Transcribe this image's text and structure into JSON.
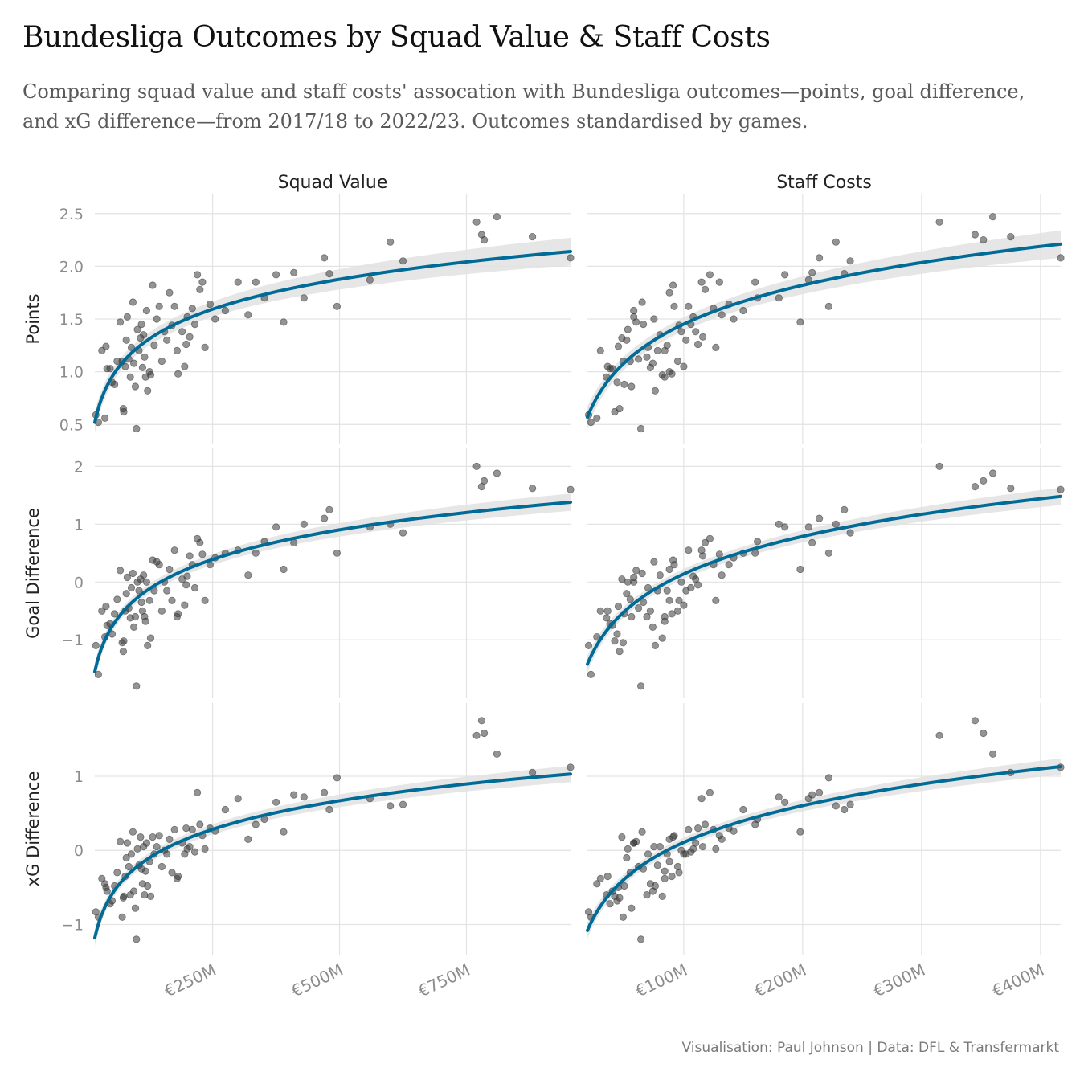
{
  "title": "Bundesliga Outcomes by Squad Value & Staff Costs",
  "subtitle": "Comparing squad value and staff costs' assocation with Bundesliga outcomes—points, goal difference, and xG difference—from 2017/18 to 2022/23. Outcomes standardised by games.",
  "caption": "Visualisation: Paul Johnson | Data: DFL & Transfermarkt",
  "colors": {
    "fit_line": "#006b96",
    "band": "#e2e2e2",
    "points": "#3a3a3a",
    "grid": "#e3e3e3"
  },
  "chart_data": {
    "type": "scatter",
    "fit": "log",
    "columns": [
      {
        "key": "squad",
        "label": "Squad Value",
        "xlim": [
          18,
          955
        ],
        "xticks": [
          {
            "value": 250,
            "label": "€250M"
          },
          {
            "value": 500,
            "label": "€500M"
          },
          {
            "value": 750,
            "label": "€750M"
          }
        ]
      },
      {
        "key": "staff",
        "label": "Staff Costs",
        "xlim": [
          19,
          417
        ],
        "xticks": [
          {
            "value": 100,
            "label": "€100M"
          },
          {
            "value": 200,
            "label": "€200M"
          },
          {
            "value": 300,
            "label": "€300M"
          },
          {
            "value": 400,
            "label": "€400M"
          }
        ]
      }
    ],
    "rows": [
      {
        "key": "points",
        "label": "Points",
        "ylim": [
          0.38,
          2.62
        ],
        "yticks": [
          {
            "value": 0.5,
            "label": "0.5"
          },
          {
            "value": 1.0,
            "label": "1.0"
          },
          {
            "value": 1.5,
            "label": "1.5"
          },
          {
            "value": 2.0,
            "label": "2.0"
          },
          {
            "value": 2.5,
            "label": "2.5"
          }
        ]
      },
      {
        "key": "gd",
        "label": "Goal Difference",
        "ylim": [
          -1.9,
          2.2
        ],
        "yticks": [
          {
            "value": -1,
            "label": "−1"
          },
          {
            "value": 0,
            "label": "0"
          },
          {
            "value": 1,
            "label": "1"
          },
          {
            "value": 2,
            "label": "2"
          }
        ]
      },
      {
        "key": "xgd",
        "label": "xG Difference",
        "ylim": [
          -1.32,
          1.9
        ],
        "yticks": [
          {
            "value": -1,
            "label": "−1"
          },
          {
            "value": 0,
            "label": "0"
          },
          {
            "value": 1,
            "label": "1"
          }
        ]
      }
    ],
    "fits": {
      "squad": {
        "points": {
          "from": 0.52,
          "to": 2.14
        },
        "gd": {
          "from": -1.55,
          "to": 1.38
        },
        "xgd": {
          "from": -1.18,
          "to": 1.03
        }
      },
      "staff": {
        "points": {
          "from": 0.57,
          "to": 2.21
        },
        "gd": {
          "from": -1.42,
          "to": 1.48
        },
        "xgd": {
          "from": -1.08,
          "to": 1.13
        }
      }
    },
    "band_width": {
      "points": [
        0.1,
        0.04,
        0.05,
        0.13
      ],
      "gd": [
        0.15,
        0.06,
        0.07,
        0.15
      ],
      "xgd": [
        0.11,
        0.05,
        0.05,
        0.11
      ]
    },
    "teams": [
      {
        "squad": 20,
        "staff": 20,
        "points": 0.59,
        "gd": -1.1,
        "xgd": -0.83
      },
      {
        "squad": 25,
        "staff": 22,
        "points": 0.52,
        "gd": -1.6,
        "xgd": -0.9
      },
      {
        "squad": 32,
        "staff": 30,
        "points": 1.2,
        "gd": -0.5,
        "xgd": -0.38
      },
      {
        "squad": 38,
        "staff": 27,
        "points": 0.56,
        "gd": -0.95,
        "xgd": -0.45
      },
      {
        "squad": 40,
        "staff": 45,
        "points": 1.24,
        "gd": -0.42,
        "xgd": -0.5
      },
      {
        "squad": 42,
        "staff": 40,
        "points": 1.03,
        "gd": -0.75,
        "xgd": -0.55
      },
      {
        "squad": 48,
        "staff": 38,
        "points": 1.03,
        "gd": -0.72,
        "xgd": -0.72
      },
      {
        "squad": 52,
        "staff": 44,
        "points": 0.9,
        "gd": -0.9,
        "xgd": -0.68
      },
      {
        "squad": 57,
        "staff": 50,
        "points": 0.88,
        "gd": -0.55,
        "xgd": -0.48
      },
      {
        "squad": 62,
        "staff": 55,
        "points": 1.1,
        "gd": -0.3,
        "xgd": -0.3
      },
      {
        "squad": 68,
        "staff": 60,
        "points": 1.47,
        "gd": 0.2,
        "xgd": 0.12
      },
      {
        "squad": 72,
        "staff": 49,
        "points": 1.1,
        "gd": -1.05,
        "xgd": -0.9
      },
      {
        "squad": 74,
        "staff": 46,
        "points": 0.65,
        "gd": -1.2,
        "xgd": -0.64
      },
      {
        "squad": 75,
        "staff": 42,
        "points": 0.62,
        "gd": -1.02,
        "xgd": -0.62
      },
      {
        "squad": 78,
        "staff": 36,
        "points": 1.05,
        "gd": -0.5,
        "xgd": -0.35
      },
      {
        "squad": 80,
        "staff": 52,
        "points": 1.3,
        "gd": -0.2,
        "xgd": -0.1
      },
      {
        "squad": 82,
        "staff": 58,
        "points": 1.52,
        "gd": 0.08,
        "xgd": 0.1
      },
      {
        "squad": 85,
        "staff": 62,
        "points": 1.12,
        "gd": -0.45,
        "xgd": -0.22
      },
      {
        "squad": 88,
        "staff": 35,
        "points": 0.95,
        "gd": -0.62,
        "xgd": -0.6
      },
      {
        "squad": 90,
        "staff": 70,
        "points": 1.23,
        "gd": -0.1,
        "xgd": -0.05
      },
      {
        "squad": 93,
        "staff": 65,
        "points": 1.66,
        "gd": 0.15,
        "xgd": 0.25
      },
      {
        "squad": 95,
        "staff": 74,
        "points": 1.08,
        "gd": -0.78,
        "xgd": -0.55
      },
      {
        "squad": 98,
        "staff": 56,
        "points": 0.86,
        "gd": -0.6,
        "xgd": -0.78
      },
      {
        "squad": 100,
        "staff": 64,
        "points": 0.46,
        "gd": -1.8,
        "xgd": -1.2
      },
      {
        "squad": 102,
        "staff": 53,
        "points": 1.4,
        "gd": 0.0,
        "xgd": 0.02
      },
      {
        "squad": 105,
        "staff": 78,
        "points": 1.2,
        "gd": -0.15,
        "xgd": -0.2
      },
      {
        "squad": 108,
        "staff": 48,
        "points": 1.32,
        "gd": 0.05,
        "xgd": 0.18
      },
      {
        "squad": 110,
        "staff": 66,
        "points": 1.45,
        "gd": -0.35,
        "xgd": -0.25
      },
      {
        "squad": 112,
        "staff": 72,
        "points": 1.04,
        "gd": -0.5,
        "xgd": -0.45
      },
      {
        "squad": 114,
        "staff": 80,
        "points": 1.35,
        "gd": 0.12,
        "xgd": 0.05
      },
      {
        "squad": 116,
        "staff": 69,
        "points": 1.14,
        "gd": -0.6,
        "xgd": -0.6
      },
      {
        "squad": 118,
        "staff": 84,
        "points": 0.95,
        "gd": -0.68,
        "xgd": -0.28
      },
      {
        "squad": 120,
        "staff": 58,
        "points": 1.58,
        "gd": 0.0,
        "xgd": 0.1
      },
      {
        "squad": 122,
        "staff": 76,
        "points": 0.82,
        "gd": -1.1,
        "xgd": -0.48
      },
      {
        "squad": 126,
        "staff": 88,
        "points": 1.0,
        "gd": -0.32,
        "xgd": -0.15
      },
      {
        "squad": 128,
        "staff": 82,
        "points": 0.97,
        "gd": -0.97,
        "xgd": -0.62
      },
      {
        "squad": 132,
        "staff": 91,
        "points": 1.82,
        "gd": 0.38,
        "xgd": 0.18
      },
      {
        "squad": 135,
        "staff": 86,
        "points": 1.25,
        "gd": -0.15,
        "xgd": -0.05
      },
      {
        "squad": 140,
        "staff": 75,
        "points": 1.5,
        "gd": 0.35,
        "xgd": 0.05
      },
      {
        "squad": 145,
        "staff": 92,
        "points": 1.62,
        "gd": 0.3,
        "xgd": 0.2
      },
      {
        "squad": 150,
        "staff": 95,
        "points": 1.1,
        "gd": -0.5,
        "xgd": -0.22
      },
      {
        "squad": 155,
        "staff": 98,
        "points": 1.38,
        "gd": 0.0,
        "xgd": 0.0
      },
      {
        "squad": 160,
        "staff": 102,
        "points": 1.3,
        "gd": -0.15,
        "xgd": -0.05
      },
      {
        "squad": 165,
        "staff": 88,
        "points": 1.75,
        "gd": 0.22,
        "xgd": 0.15
      },
      {
        "squad": 170,
        "staff": 96,
        "points": 1.44,
        "gd": -0.32,
        "xgd": -0.3
      },
      {
        "squad": 175,
        "staff": 104,
        "points": 1.62,
        "gd": 0.55,
        "xgd": 0.28
      },
      {
        "squad": 180,
        "staff": 84,
        "points": 1.2,
        "gd": -0.6,
        "xgd": -0.38
      },
      {
        "squad": 182,
        "staff": 90,
        "points": 0.98,
        "gd": -0.55,
        "xgd": -0.35
      },
      {
        "squad": 190,
        "staff": 110,
        "points": 1.38,
        "gd": 0.05,
        "xgd": 0.1
      },
      {
        "squad": 195,
        "staff": 100,
        "points": 1.05,
        "gd": -0.4,
        "xgd": -0.05
      },
      {
        "squad": 198,
        "staff": 112,
        "points": 1.26,
        "gd": -0.05,
        "xgd": 0.3
      },
      {
        "squad": 200,
        "staff": 108,
        "points": 1.52,
        "gd": 0.1,
        "xgd": 0.02
      },
      {
        "squad": 205,
        "staff": 116,
        "points": 1.33,
        "gd": 0.45,
        "xgd": 0.05
      },
      {
        "squad": 210,
        "staff": 125,
        "points": 1.6,
        "gd": 0.3,
        "xgd": 0.28
      },
      {
        "squad": 215,
        "staff": 106,
        "points": 1.45,
        "gd": -0.1,
        "xgd": -0.02
      },
      {
        "squad": 220,
        "staff": 122,
        "points": 1.92,
        "gd": 0.75,
        "xgd": 0.78
      },
      {
        "squad": 225,
        "staff": 118,
        "points": 1.78,
        "gd": 0.68,
        "xgd": 0.35
      },
      {
        "squad": 230,
        "staff": 130,
        "points": 1.85,
        "gd": 0.48,
        "xgd": 0.2
      },
      {
        "squad": 235,
        "staff": 127,
        "points": 1.23,
        "gd": -0.32,
        "xgd": 0.02
      },
      {
        "squad": 245,
        "staff": 138,
        "points": 1.64,
        "gd": 0.3,
        "xgd": 0.3
      },
      {
        "squad": 255,
        "staff": 142,
        "points": 1.5,
        "gd": 0.42,
        "xgd": 0.26
      },
      {
        "squad": 275,
        "staff": 150,
        "points": 1.58,
        "gd": 0.5,
        "xgd": 0.55
      },
      {
        "squad": 300,
        "staff": 115,
        "points": 1.85,
        "gd": 0.55,
        "xgd": 0.7
      },
      {
        "squad": 320,
        "staff": 132,
        "points": 1.54,
        "gd": 0.12,
        "xgd": 0.15
      },
      {
        "squad": 335,
        "staff": 160,
        "points": 1.85,
        "gd": 0.5,
        "xgd": 0.35
      },
      {
        "squad": 352,
        "staff": 162,
        "points": 1.7,
        "gd": 0.7,
        "xgd": 0.42
      },
      {
        "squad": 375,
        "staff": 185,
        "points": 1.92,
        "gd": 0.95,
        "xgd": 0.65
      },
      {
        "squad": 390,
        "staff": 198,
        "points": 1.47,
        "gd": 0.22,
        "xgd": 0.25
      },
      {
        "squad": 410,
        "staff": 208,
        "points": 1.94,
        "gd": 0.68,
        "xgd": 0.75
      },
      {
        "squad": 430,
        "staff": 180,
        "points": 1.7,
        "gd": 1.0,
        "xgd": 0.72
      },
      {
        "squad": 470,
        "staff": 214,
        "points": 2.08,
        "gd": 1.1,
        "xgd": 0.78
      },
      {
        "squad": 480,
        "staff": 235,
        "points": 1.93,
        "gd": 1.25,
        "xgd": 0.55
      },
      {
        "squad": 495,
        "staff": 222,
        "points": 1.62,
        "gd": 0.5,
        "xgd": 0.98
      },
      {
        "squad": 560,
        "staff": 205,
        "points": 1.87,
        "gd": 0.95,
        "xgd": 0.7
      },
      {
        "squad": 600,
        "staff": 228,
        "points": 2.23,
        "gd": 1.0,
        "xgd": 0.6
      },
      {
        "squad": 625,
        "staff": 240,
        "points": 2.05,
        "gd": 0.85,
        "xgd": 0.62
      },
      {
        "squad": 770,
        "staff": 315,
        "points": 2.42,
        "gd": 2.0,
        "xgd": 1.55
      },
      {
        "squad": 780,
        "staff": 345,
        "points": 2.3,
        "gd": 1.65,
        "xgd": 1.75
      },
      {
        "squad": 785,
        "staff": 352,
        "points": 2.25,
        "gd": 1.75,
        "xgd": 1.58
      },
      {
        "squad": 810,
        "staff": 360,
        "points": 2.47,
        "gd": 1.88,
        "xgd": 1.3
      },
      {
        "squad": 880,
        "staff": 375,
        "points": 2.28,
        "gd": 1.62,
        "xgd": 1.05
      },
      {
        "squad": 955,
        "staff": 417,
        "points": 2.08,
        "gd": 1.6,
        "xgd": 1.12
      }
    ]
  }
}
